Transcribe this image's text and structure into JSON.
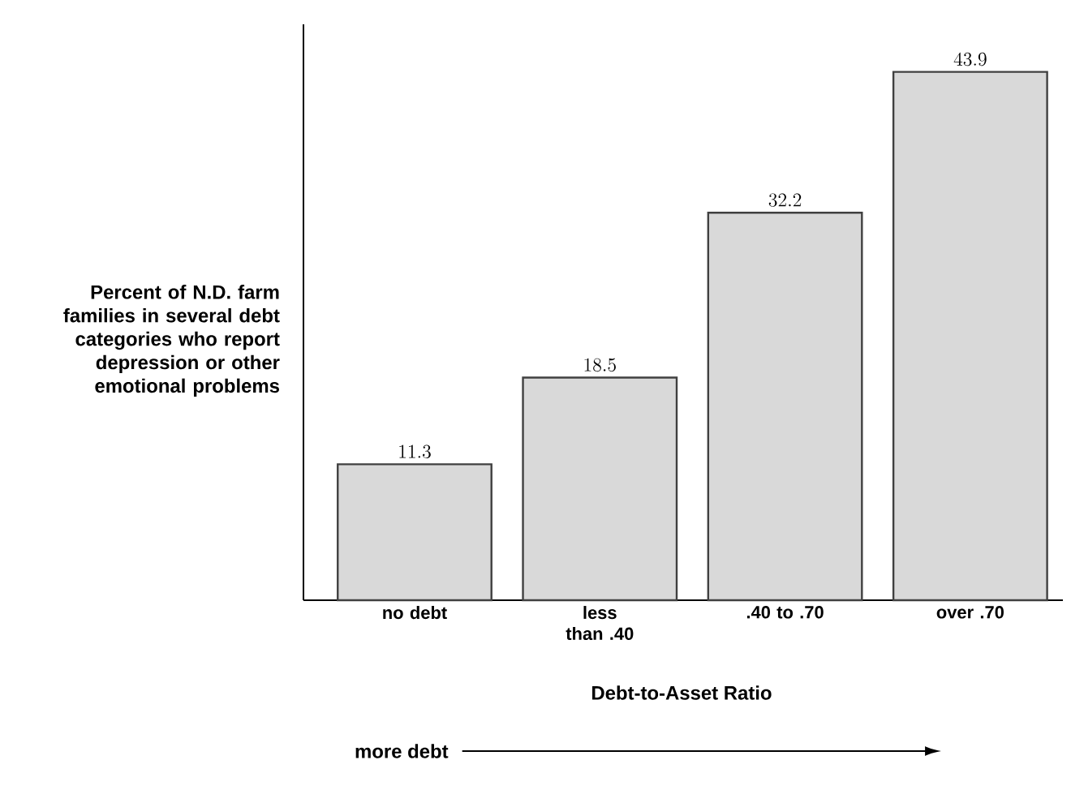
{
  "chart_data": {
    "type": "bar",
    "ylabel": "Percent of N.D. farm families in several debt categories who report depression or other emotional problems",
    "xlabel": "Debt-to-Asset Ratio",
    "categories": [
      "no debt",
      "less than .40",
      ".40 to .70",
      "over .70"
    ],
    "values": [
      11.3,
      18.5,
      32.2,
      43.9
    ],
    "color": "#d9d9d9",
    "relative": false,
    "data_labels": true,
    "annotations": [
      "more debt"
    ]
  }
}
